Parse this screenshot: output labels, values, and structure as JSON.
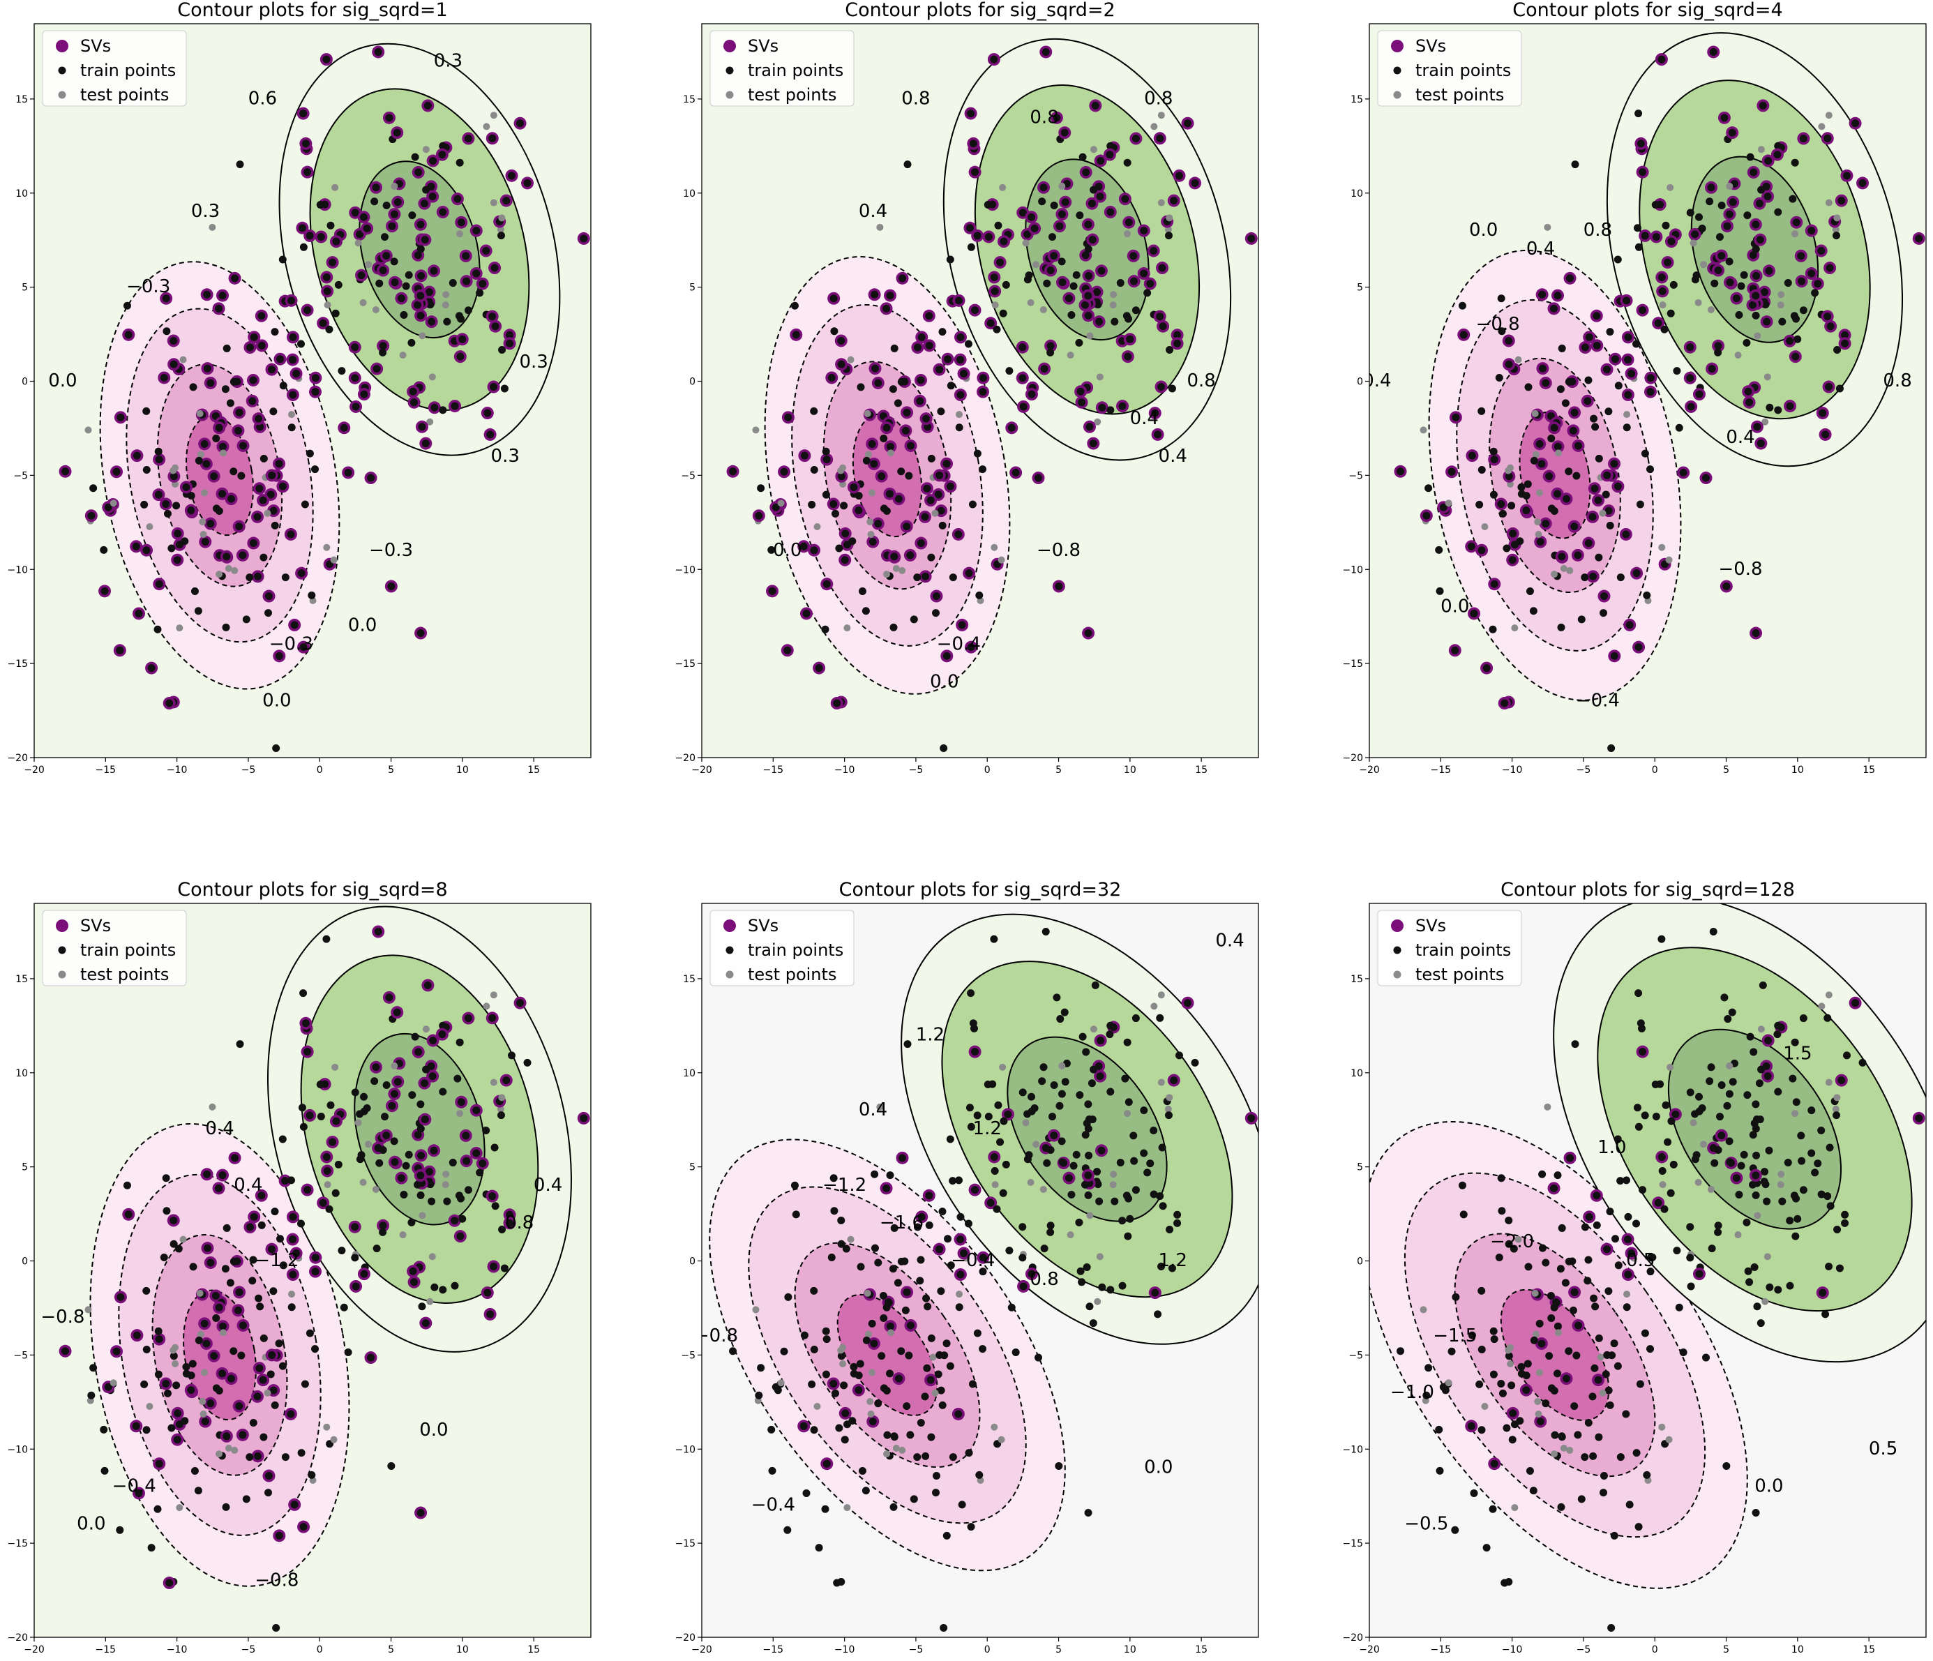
{
  "chart_data": [
    {
      "type": "contour",
      "title": "Contour plots for sig_sqrd=1",
      "xlim": [
        -20,
        19
      ],
      "ylim": [
        -20,
        19
      ],
      "xticks": [
        "−20",
        "−15",
        "−10",
        "−5",
        "0",
        "5",
        "10",
        "15"
      ],
      "yticks": [
        "−20",
        "−15",
        "−10",
        "−5",
        "0",
        "5",
        "10",
        "15"
      ],
      "legend": {
        "placement": "top-left",
        "entries": [
          "SVs",
          "train points",
          "test points"
        ]
      },
      "contour_levels": [
        "−0.9",
        "−0.6",
        "−0.3",
        "0.0",
        "0.3",
        "0.6",
        "0.9"
      ],
      "contour_labels": [
        {
          "text": "0.0",
          "x": -18,
          "y": 0
        },
        {
          "text": "0.3",
          "x": -8,
          "y": 9
        },
        {
          "text": "0.6",
          "x": -4,
          "y": 15
        },
        {
          "text": "0.3",
          "x": 9,
          "y": 17
        },
        {
          "text": "−0.3",
          "x": -12,
          "y": 5
        },
        {
          "text": "0.3",
          "x": 15,
          "y": 1
        },
        {
          "text": "0.3",
          "x": 13,
          "y": -4
        },
        {
          "text": "−0.3",
          "x": 5,
          "y": -9
        },
        {
          "text": "0.0",
          "x": 3,
          "y": -13
        },
        {
          "text": "0.0",
          "x": -3,
          "y": -17
        },
        {
          "text": "−0.3",
          "x": -2,
          "y": -14
        }
      ]
    },
    {
      "type": "contour",
      "title": "Contour plots for sig_sqrd=2",
      "xlim": [
        -20,
        19
      ],
      "ylim": [
        -20,
        19
      ],
      "xticks": [
        "−20",
        "−15",
        "−10",
        "−5",
        "0",
        "5",
        "10",
        "15"
      ],
      "yticks": [
        "−20",
        "−15",
        "−10",
        "−5",
        "0",
        "5",
        "10",
        "15"
      ],
      "legend": {
        "placement": "top-left",
        "entries": [
          "SVs",
          "train points",
          "test points"
        ]
      },
      "contour_levels": [
        "−0.8",
        "−0.4",
        "0.0",
        "0.4",
        "0.8"
      ],
      "contour_labels": [
        {
          "text": "0.4",
          "x": -8,
          "y": 9
        },
        {
          "text": "0.8",
          "x": -5,
          "y": 15
        },
        {
          "text": "0.8",
          "x": 4,
          "y": 14
        },
        {
          "text": "0.8",
          "x": 12,
          "y": 15
        },
        {
          "text": "0.8",
          "x": 15,
          "y": 0
        },
        {
          "text": "0.4",
          "x": 11,
          "y": -2
        },
        {
          "text": "0.4",
          "x": 13,
          "y": -4
        },
        {
          "text": "−0.8",
          "x": 5,
          "y": -9
        },
        {
          "text": "0.0",
          "x": -14,
          "y": -9
        },
        {
          "text": "−0.4",
          "x": -2,
          "y": -14
        },
        {
          "text": "0.0",
          "x": -3,
          "y": -16
        }
      ]
    },
    {
      "type": "contour",
      "title": "Contour plots for sig_sqrd=4",
      "xlim": [
        -20,
        19
      ],
      "ylim": [
        -20,
        19
      ],
      "xticks": [
        "−20",
        "−15",
        "−10",
        "−5",
        "0",
        "5",
        "10",
        "15"
      ],
      "yticks": [
        "−20",
        "−15",
        "−10",
        "−5",
        "0",
        "5",
        "10",
        "15"
      ],
      "legend": {
        "placement": "top-left",
        "entries": [
          "SVs",
          "train points",
          "test points"
        ]
      },
      "contour_levels": [
        "−0.8",
        "−0.4",
        "0.0",
        "0.4",
        "0.8"
      ],
      "contour_labels": [
        {
          "text": "0.0",
          "x": -12,
          "y": 8
        },
        {
          "text": "0.4",
          "x": -8,
          "y": 7
        },
        {
          "text": "0.8",
          "x": -4,
          "y": 8
        },
        {
          "text": "−0.4",
          "x": -20,
          "y": 0
        },
        {
          "text": "−0.8",
          "x": -11,
          "y": 3
        },
        {
          "text": "0.8",
          "x": 17,
          "y": 0
        },
        {
          "text": "0.4",
          "x": 6,
          "y": -3
        },
        {
          "text": "−0.8",
          "x": 6,
          "y": -10
        },
        {
          "text": "0.0",
          "x": -14,
          "y": -12
        },
        {
          "text": "−0.4",
          "x": -4,
          "y": -17
        }
      ]
    },
    {
      "type": "contour",
      "title": "Contour plots for sig_sqrd=8",
      "xlim": [
        -20,
        19
      ],
      "ylim": [
        -20,
        19
      ],
      "xticks": [
        "−20",
        "−15",
        "−10",
        "−5",
        "0",
        "5",
        "10",
        "15"
      ],
      "yticks": [
        "−20",
        "−15",
        "−10",
        "−5",
        "0",
        "5",
        "10",
        "15"
      ],
      "legend": {
        "placement": "top-left",
        "entries": [
          "SVs",
          "train points",
          "test points"
        ]
      },
      "contour_levels": [
        "−1.2",
        "−0.8",
        "−0.4",
        "0.0",
        "0.4",
        "0.8"
      ],
      "contour_labels": [
        {
          "text": "0.4",
          "x": -7,
          "y": 7
        },
        {
          "text": "0.4",
          "x": -5,
          "y": 4
        },
        {
          "text": "0.8",
          "x": 14,
          "y": 2
        },
        {
          "text": "0.4",
          "x": 16,
          "y": 4
        },
        {
          "text": "−1.2",
          "x": -3,
          "y": 0
        },
        {
          "text": "−0.8",
          "x": -18,
          "y": -3
        },
        {
          "text": "0.0",
          "x": 8,
          "y": -9
        },
        {
          "text": "−0.4",
          "x": -13,
          "y": -12
        },
        {
          "text": "0.0",
          "x": -16,
          "y": -14
        },
        {
          "text": "−0.8",
          "x": -3,
          "y": -17
        }
      ]
    },
    {
      "type": "contour",
      "title": "Contour plots for sig_sqrd=32",
      "xlim": [
        -20,
        19
      ],
      "ylim": [
        -20,
        19
      ],
      "xticks": [
        "−20",
        "−15",
        "−10",
        "−5",
        "0",
        "5",
        "10",
        "15"
      ],
      "yticks": [
        "−20",
        "−15",
        "−10",
        "−5",
        "0",
        "5",
        "10",
        "15"
      ],
      "legend": {
        "placement": "top-left",
        "entries": [
          "SVs",
          "train points",
          "test points"
        ]
      },
      "contour_levels": [
        "−1.6",
        "−1.2",
        "−0.8",
        "−0.4",
        "0.0",
        "0.4",
        "0.8",
        "1.2"
      ],
      "contour_labels": [
        {
          "text": "0.4",
          "x": 17,
          "y": 17
        },
        {
          "text": "1.2",
          "x": -4,
          "y": 12
        },
        {
          "text": "0.4",
          "x": -8,
          "y": 8
        },
        {
          "text": "1.2",
          "x": 0,
          "y": 7
        },
        {
          "text": "−1.2",
          "x": -10,
          "y": 4
        },
        {
          "text": "−1.6",
          "x": -6,
          "y": 2
        },
        {
          "text": "−0.4",
          "x": -1,
          "y": 0
        },
        {
          "text": "0.8",
          "x": 4,
          "y": -1
        },
        {
          "text": "1.2",
          "x": 13,
          "y": 0
        },
        {
          "text": "−0.8",
          "x": -19,
          "y": -4
        },
        {
          "text": "0.0",
          "x": 12,
          "y": -11
        },
        {
          "text": "−0.4",
          "x": -15,
          "y": -13
        }
      ]
    },
    {
      "type": "contour",
      "title": "Contour plots for sig_sqrd=128",
      "xlim": [
        -20,
        19
      ],
      "ylim": [
        -20,
        19
      ],
      "xticks": [
        "−20",
        "−15",
        "−10",
        "−5",
        "0",
        "5",
        "10",
        "15"
      ],
      "yticks": [
        "−20",
        "−15",
        "−10",
        "−5",
        "0",
        "5",
        "10",
        "15"
      ],
      "legend": {
        "placement": "top-left",
        "entries": [
          "SVs",
          "train points",
          "test points"
        ]
      },
      "contour_levels": [
        "−2.0",
        "−1.5",
        "−1.0",
        "−0.5",
        "0.0",
        "0.5",
        "1.0",
        "1.5"
      ],
      "contour_labels": [
        {
          "text": "1.5",
          "x": 10,
          "y": 11
        },
        {
          "text": "1.0",
          "x": -3,
          "y": 6
        },
        {
          "text": "−2.0",
          "x": -10,
          "y": 1
        },
        {
          "text": "0.5",
          "x": -1,
          "y": 0
        },
        {
          "text": "−1.5",
          "x": -14,
          "y": -4
        },
        {
          "text": "−1.0",
          "x": -17,
          "y": -7
        },
        {
          "text": "0.0",
          "x": 8,
          "y": -12
        },
        {
          "text": "0.5",
          "x": 16,
          "y": -10
        },
        {
          "text": "−0.5",
          "x": -16,
          "y": -14
        }
      ]
    }
  ],
  "colors": {
    "neg_strong": "#d36fb0",
    "neg_mid": "#e9acd3",
    "neg_light": "#f5d3e8",
    "neg_faint": "#fbeaf3",
    "zero": "#f7f7f7",
    "pos_faint": "#f1f8ea",
    "pos_light": "#d9eec5",
    "pos_mid": "#b6d99b",
    "pos_strong": "#97bd84",
    "sv_fill": "#7a0f7a",
    "train": "#111111",
    "test": "#8a8a8a"
  }
}
